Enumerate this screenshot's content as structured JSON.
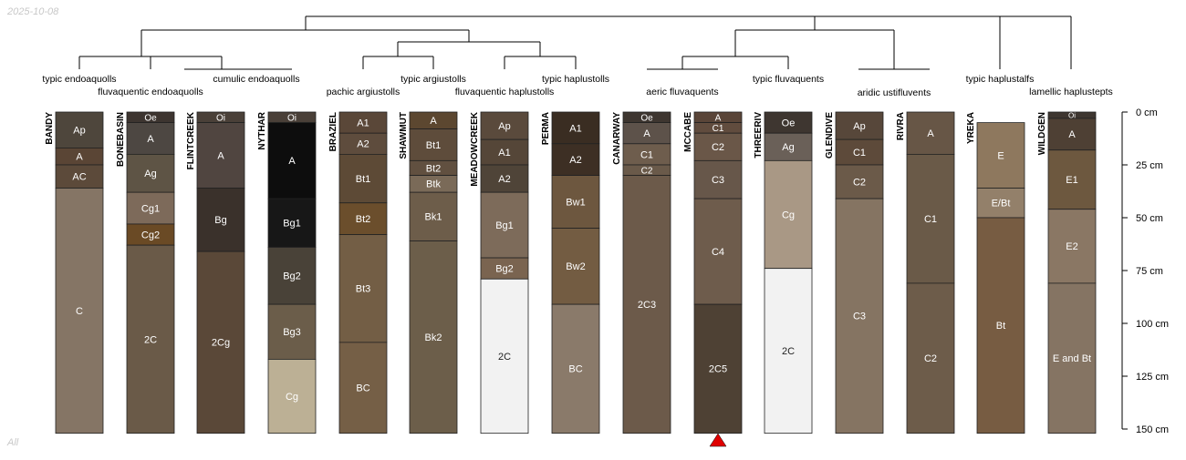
{
  "header": {
    "date": "2025-10-08"
  },
  "footer": {
    "label": "All"
  },
  "chart_data": {
    "type": "soil-profile",
    "title": "",
    "depth_unit": "cm",
    "ylim": [
      0,
      150
    ],
    "depth_ticks": [
      "0 cm",
      "25 cm",
      "50 cm",
      "75 cm",
      "100 cm",
      "125 cm",
      "150 cm"
    ],
    "depth_tick_values": [
      0,
      25,
      50,
      75,
      100,
      125,
      150
    ],
    "marker": {
      "profile": "MCCABE",
      "color": "#e00000"
    },
    "profiles": [
      {
        "name": "BANDY",
        "horizons": [
          {
            "name": "Ap",
            "top": 0,
            "bottom": 17,
            "color": "#4e463c"
          },
          {
            "name": "A",
            "top": 17,
            "bottom": 25,
            "color": "#5a4535"
          },
          {
            "name": "AC",
            "top": 25,
            "bottom": 36,
            "color": "#5c4a3a"
          },
          {
            "name": "C",
            "top": 36,
            "bottom": 152,
            "color": "#857565"
          }
        ]
      },
      {
        "name": "BONEBASIN",
        "horizons": [
          {
            "name": "Oe",
            "top": 0,
            "bottom": 5,
            "color": "#3d3530"
          },
          {
            "name": "A",
            "top": 5,
            "bottom": 20,
            "color": "#4d4742"
          },
          {
            "name": "Ag",
            "top": 20,
            "bottom": 38,
            "color": "#5e5445"
          },
          {
            "name": "Cg1",
            "top": 38,
            "bottom": 53,
            "color": "#7d6a5a"
          },
          {
            "name": "Cg2",
            "top": 53,
            "bottom": 63,
            "color": "#6a4a25"
          },
          {
            "name": "2C",
            "top": 63,
            "bottom": 152,
            "color": "#6a5a48"
          }
        ]
      },
      {
        "name": "FLINTCREEK",
        "horizons": [
          {
            "name": "Oi",
            "top": 0,
            "bottom": 5,
            "color": "#4a4038"
          },
          {
            "name": "A",
            "top": 5,
            "bottom": 36,
            "color": "#504540"
          },
          {
            "name": "Bg",
            "top": 36,
            "bottom": 66,
            "color": "#3a312b"
          },
          {
            "name": "2Cg",
            "top": 66,
            "bottom": 152,
            "color": "#5a4838"
          }
        ]
      },
      {
        "name": "NYTHAR",
        "horizons": [
          {
            "name": "Oi",
            "top": 0,
            "bottom": 5,
            "color": "#4a4038"
          },
          {
            "name": "A",
            "top": 5,
            "bottom": 41,
            "color": "#0d0d0d"
          },
          {
            "name": "Bg1",
            "top": 41,
            "bottom": 64,
            "color": "#171717"
          },
          {
            "name": "Bg2",
            "top": 64,
            "bottom": 91,
            "color": "#494238"
          },
          {
            "name": "Bg3",
            "top": 91,
            "bottom": 117,
            "color": "#6b5d4a"
          },
          {
            "name": "Cg",
            "top": 117,
            "bottom": 152,
            "color": "#bcb095"
          }
        ]
      },
      {
        "name": "BRAZIEL",
        "horizons": [
          {
            "name": "A1",
            "top": 0,
            "bottom": 10,
            "color": "#5a4738"
          },
          {
            "name": "A2",
            "top": 10,
            "bottom": 20,
            "color": "#5e4c3d"
          },
          {
            "name": "Bt1",
            "top": 20,
            "bottom": 43,
            "color": "#5d4a36"
          },
          {
            "name": "Bt2",
            "top": 43,
            "bottom": 58,
            "color": "#6b4e2c"
          },
          {
            "name": "Bt3",
            "top": 58,
            "bottom": 109,
            "color": "#735e45"
          },
          {
            "name": "BC",
            "top": 109,
            "bottom": 152,
            "color": "#755f46"
          }
        ]
      },
      {
        "name": "SHAWMUT",
        "horizons": [
          {
            "name": "A",
            "top": 0,
            "bottom": 8,
            "color": "#5c4730"
          },
          {
            "name": "Bt1",
            "top": 8,
            "bottom": 23,
            "color": "#5e4c3b"
          },
          {
            "name": "Bt2",
            "top": 23,
            "bottom": 30,
            "color": "#615040"
          },
          {
            "name": "Btk",
            "top": 30,
            "bottom": 38,
            "color": "#7a6a58"
          },
          {
            "name": "Bk1",
            "top": 38,
            "bottom": 61,
            "color": "#6d5d4a"
          },
          {
            "name": "Bk2",
            "top": 61,
            "bottom": 152,
            "color": "#6c5e4a"
          }
        ]
      },
      {
        "name": "MEADOWCREEK",
        "horizons": [
          {
            "name": "Ap",
            "top": 0,
            "bottom": 13,
            "color": "#5a4a3c"
          },
          {
            "name": "A1",
            "top": 13,
            "bottom": 25,
            "color": "#554638"
          },
          {
            "name": "A2",
            "top": 25,
            "bottom": 38,
            "color": "#4f4438"
          },
          {
            "name": "Bg1",
            "top": 38,
            "bottom": 69,
            "color": "#7d6b5a"
          },
          {
            "name": "Bg2",
            "top": 69,
            "bottom": 79,
            "color": "#7a6450"
          },
          {
            "name": "2C",
            "top": 79,
            "bottom": 152,
            "color": "#f2f2f2"
          }
        ]
      },
      {
        "name": "PERMA",
        "horizons": [
          {
            "name": "A1",
            "top": 0,
            "bottom": 15,
            "color": "#3a2d22"
          },
          {
            "name": "A2",
            "top": 15,
            "bottom": 30,
            "color": "#3d2f24"
          },
          {
            "name": "Bw1",
            "top": 30,
            "bottom": 55,
            "color": "#6d573f"
          },
          {
            "name": "Bw2",
            "top": 55,
            "bottom": 91,
            "color": "#735c42"
          },
          {
            "name": "BC",
            "top": 91,
            "bottom": 152,
            "color": "#8a7a6a"
          }
        ]
      },
      {
        "name": "CANARWAY",
        "horizons": [
          {
            "name": "Oe",
            "top": 0,
            "bottom": 5,
            "color": "#3e3630"
          },
          {
            "name": "A",
            "top": 5,
            "bottom": 15,
            "color": "#5d524a"
          },
          {
            "name": "C1",
            "top": 15,
            "bottom": 25,
            "color": "#6e5d4d"
          },
          {
            "name": "C2",
            "top": 25,
            "bottom": 30,
            "color": "#6a5a4a"
          },
          {
            "name": "2C3",
            "top": 30,
            "bottom": 152,
            "color": "#6c5a4a"
          }
        ]
      },
      {
        "name": "MCCABE",
        "horizons": [
          {
            "name": "A",
            "top": 0,
            "bottom": 5,
            "color": "#5a4538"
          },
          {
            "name": "C1",
            "top": 5,
            "bottom": 10,
            "color": "#614c3e"
          },
          {
            "name": "C2",
            "top": 10,
            "bottom": 23,
            "color": "#6a5748"
          },
          {
            "name": "C3",
            "top": 23,
            "bottom": 41,
            "color": "#67574a"
          },
          {
            "name": "C4",
            "top": 41,
            "bottom": 91,
            "color": "#6e5c4c"
          },
          {
            "name": "2C5",
            "top": 91,
            "bottom": 152,
            "color": "#4e4134"
          }
        ]
      },
      {
        "name": "THREERIV",
        "horizons": [
          {
            "name": "Oe",
            "top": 0,
            "bottom": 10,
            "color": "#3e3630"
          },
          {
            "name": "Ag",
            "top": 10,
            "bottom": 23,
            "color": "#6a6058"
          },
          {
            "name": "Cg",
            "top": 23,
            "bottom": 74,
            "color": "#a99885"
          },
          {
            "name": "2C",
            "top": 74,
            "bottom": 152,
            "color": "#f2f2f2"
          }
        ]
      },
      {
        "name": "GLENDIVE",
        "horizons": [
          {
            "name": "Ap",
            "top": 0,
            "bottom": 13,
            "color": "#57473a"
          },
          {
            "name": "C1",
            "top": 13,
            "bottom": 25,
            "color": "#5d4a3a"
          },
          {
            "name": "C2",
            "top": 25,
            "bottom": 41,
            "color": "#6b5a49"
          },
          {
            "name": "C3",
            "top": 41,
            "bottom": 152,
            "color": "#857462"
          }
        ]
      },
      {
        "name": "RIVRA",
        "horizons": [
          {
            "name": "A",
            "top": 0,
            "bottom": 20,
            "color": "#675646"
          },
          {
            "name": "C1",
            "top": 20,
            "bottom": 81,
            "color": "#6a5a48"
          },
          {
            "name": "C2",
            "top": 81,
            "bottom": 152,
            "color": "#6d5c4a"
          }
        ]
      },
      {
        "name": "YREKA",
        "horizons": [
          {
            "name": "E",
            "top": 5,
            "bottom": 36,
            "color": "#8e785e"
          },
          {
            "name": "E/Bt",
            "top": 36,
            "bottom": 50,
            "color": "#93806a"
          },
          {
            "name": "Bt",
            "top": 50,
            "bottom": 152,
            "color": "#775c42"
          }
        ]
      },
      {
        "name": "WILDGEN",
        "horizons": [
          {
            "name": "Oi",
            "top": 0,
            "bottom": 3,
            "color": "#3e3630"
          },
          {
            "name": "A",
            "top": 3,
            "bottom": 18,
            "color": "#4e4034"
          },
          {
            "name": "E1",
            "top": 18,
            "bottom": 46,
            "color": "#6d583f"
          },
          {
            "name": "E2",
            "top": 46,
            "bottom": 81,
            "color": "#8a7764"
          },
          {
            "name": "E and Bt",
            "top": 81,
            "bottom": 152,
            "color": "#857463"
          }
        ]
      }
    ],
    "taxa_labels": [
      "typic endoaquolls",
      "fluvaquentic endoaquolls",
      "cumulic endoaquolls",
      "pachic argiustolls",
      "typic argiustolls",
      "fluvaquentic haplustolls",
      "typic haplustolls",
      "aeric fluvaquents",
      "typic fluvaquents",
      "aridic ustifluvents",
      "typic haplustalfs",
      "lamellic haplustepts"
    ]
  }
}
